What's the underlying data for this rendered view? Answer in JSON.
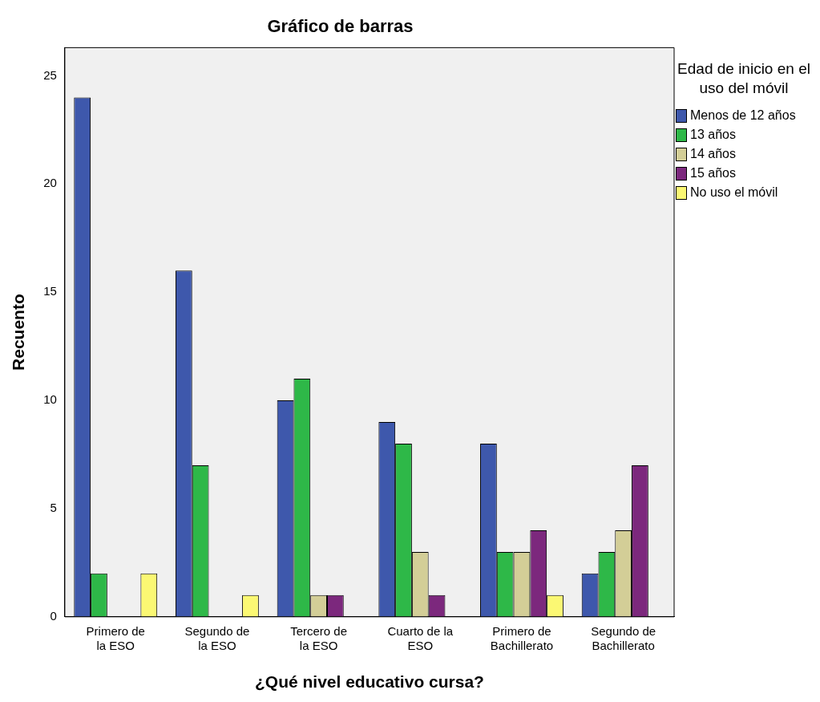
{
  "chart_data": {
    "type": "bar",
    "title": "Gráfico de barras",
    "xlabel": "¿Qué nivel educativo cursa?",
    "ylabel": "Recuento",
    "legend_title": "Edad de inicio en el uso del móvil",
    "categories": [
      "Primero de la ESO",
      "Segundo de la ESO",
      "Tercero de la ESO",
      "Cuarto de la ESO",
      "Primero de Bachillerato",
      "Segundo de Bachillerato"
    ],
    "series": [
      {
        "name": "Menos de 12 años",
        "color": "#3e58ac",
        "values": [
          24,
          16,
          10,
          9,
          8,
          2
        ]
      },
      {
        "name": "13 años",
        "color": "#2eb848",
        "values": [
          2,
          7,
          11,
          8,
          3,
          3
        ]
      },
      {
        "name": "14 años",
        "color": "#d3ce97",
        "values": [
          0,
          0,
          1,
          3,
          3,
          4
        ]
      },
      {
        "name": "15 años",
        "color": "#7c287d",
        "values": [
          0,
          0,
          1,
          1,
          4,
          7
        ]
      },
      {
        "name": "No uso el móvil",
        "color": "#fbf873",
        "values": [
          2,
          1,
          0,
          0,
          1,
          0
        ]
      }
    ],
    "ylim": [
      0,
      26.3
    ],
    "yticks": [
      0,
      5,
      10,
      15,
      20,
      25
    ],
    "grid": false,
    "legend": "right"
  }
}
